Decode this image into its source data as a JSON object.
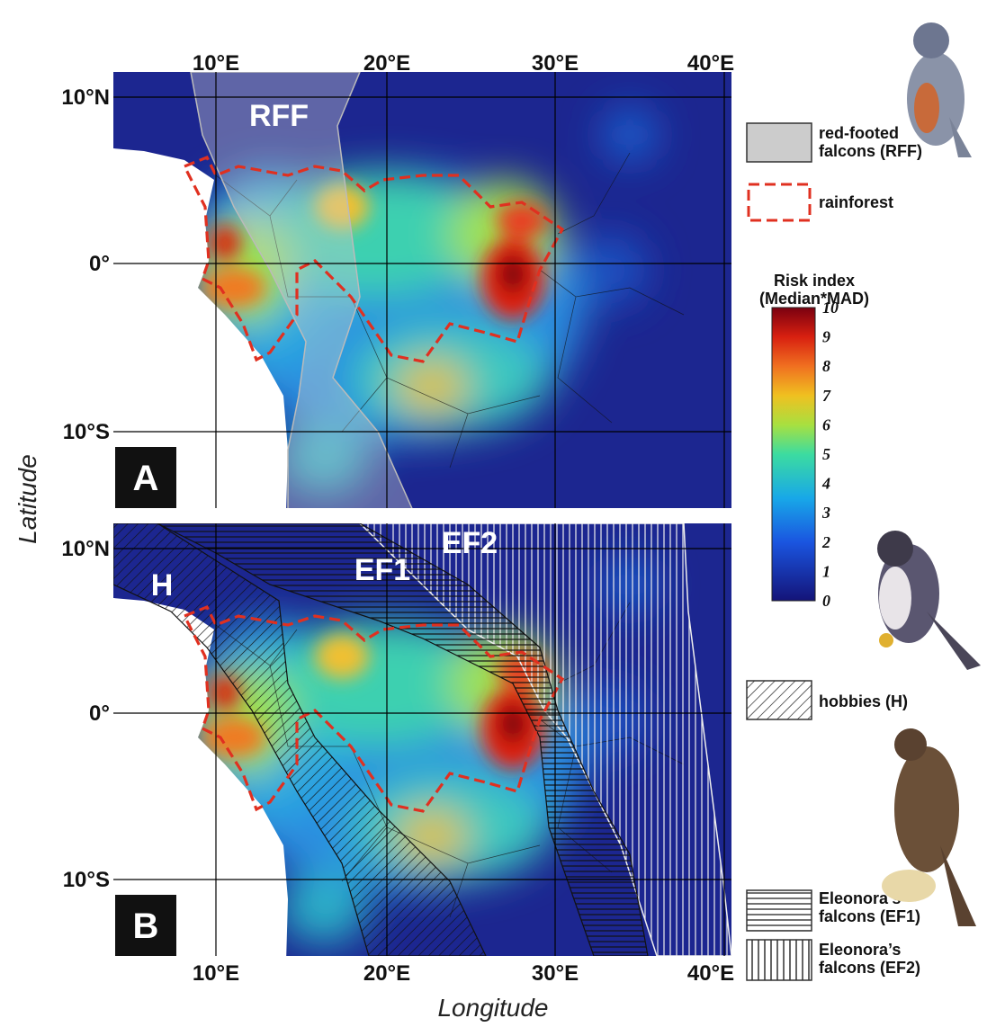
{
  "axes": {
    "x_label": "Longitude",
    "y_label": "Latitude"
  },
  "panels": [
    {
      "letter": "A",
      "x_ticks": [
        "10°E",
        "20°E",
        "30°E",
        "40°E"
      ],
      "y_ticks": [
        "10°N",
        "0°",
        "10°S"
      ],
      "labels": [
        "RFF"
      ]
    },
    {
      "letter": "B",
      "x_ticks": [
        "10°E",
        "20°E",
        "30°E",
        "40°E"
      ],
      "y_ticks": [
        "10°N",
        "0°",
        "10°S"
      ],
      "labels": [
        "H",
        "EF1",
        "EF2"
      ]
    }
  ],
  "legend": {
    "items": [
      {
        "lines": [
          "red-footed",
          "falcons (RFF)"
        ]
      },
      {
        "lines": [
          "rainforest"
        ]
      },
      {
        "lines": [
          "hobbies (H)"
        ]
      },
      {
        "lines": [
          "Eleonora’s",
          "falcons (EF1)"
        ]
      },
      {
        "lines": [
          "Eleonora’s",
          "falcons (EF2)"
        ]
      }
    ]
  },
  "colorbar": {
    "title": [
      "Risk index",
      "(Median*MAD)"
    ],
    "ticks": [
      0,
      1,
      2,
      3,
      4,
      5,
      6,
      7,
      8,
      9,
      10
    ]
  }
}
